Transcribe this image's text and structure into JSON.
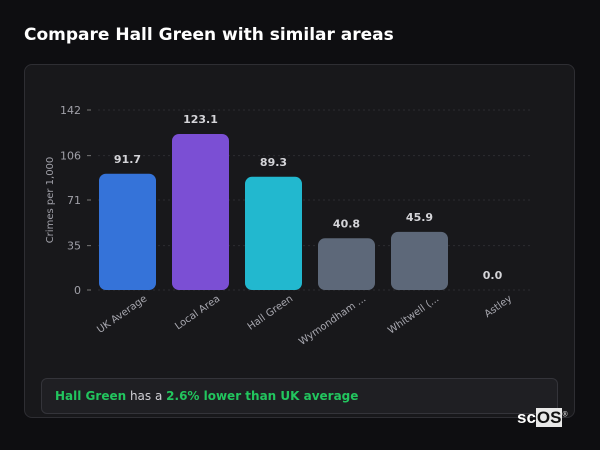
{
  "title": "Compare Hall Green with similar areas",
  "chart_data": {
    "type": "bar",
    "ylabel": "Crimes per 1,000",
    "xlabel": "",
    "ylim": [
      0,
      142
    ],
    "yticks": [
      0,
      35,
      71,
      106,
      142
    ],
    "grid": true,
    "categories": [
      "UK Average",
      "Local Area",
      "Hall Green",
      "Wymondham ...",
      "Whitwell (...",
      "Astley"
    ],
    "values": [
      91.7,
      123.1,
      89.3,
      40.8,
      45.9,
      0.0
    ],
    "value_labels": [
      "91.7",
      "123.1",
      "89.3",
      "40.8",
      "45.9",
      "0.0"
    ],
    "colors": [
      "#3573d9",
      "#7b4fd4",
      "#22b8cf",
      "#5d6879",
      "#5d6879",
      "#5d6879"
    ]
  },
  "summary": {
    "area": "Hall Green",
    "middle": " has a ",
    "comparison": "2.6% lower than UK average"
  },
  "logo": {
    "sc": "sc",
    "os": "OS",
    "mark": "®"
  }
}
